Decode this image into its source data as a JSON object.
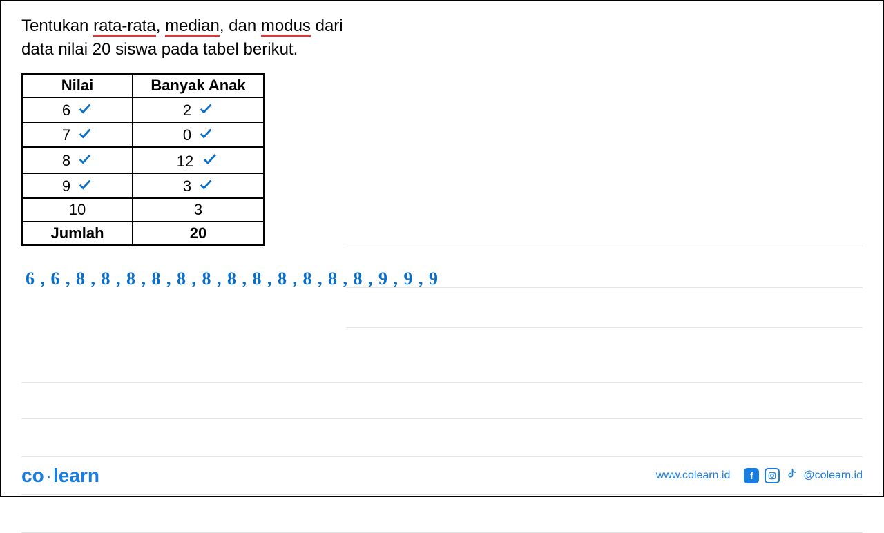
{
  "question": {
    "pre": "Tentukan ",
    "w1": "rata-rata",
    "sep1": ", ",
    "w2": "median",
    "sep2": ", dan ",
    "w3": "modus",
    "post": " dari",
    "line2": "data nilai 20 siswa pada tabel berikut."
  },
  "table": {
    "headers": {
      "col1": "Nilai",
      "col2": "Banyak Anak"
    },
    "rows": [
      {
        "nilai": "6",
        "anak": "2",
        "check_nilai": true,
        "check_anak": true
      },
      {
        "nilai": "7",
        "anak": "0",
        "check_nilai": true,
        "check_anak": true
      },
      {
        "nilai": "8",
        "anak": "12",
        "check_nilai": true,
        "check_anak": true
      },
      {
        "nilai": "9",
        "anak": "3",
        "check_nilai": true,
        "check_anak": true
      },
      {
        "nilai": "10",
        "anak": "3",
        "check_nilai": false,
        "check_anak": false
      }
    ],
    "footer": {
      "label": "Jumlah",
      "value": "20"
    }
  },
  "handwriting": "6 , 6 , 8 , 8 , 8 , 8 , 8 , 8 , 8 , 8 , 8 , 8 , 8 , 8 , 9 , 9 , 9",
  "underline_color": "#d83a3a",
  "annotation_color": "#0a6ec9",
  "footer": {
    "brand_a": "co",
    "brand_b": "learn",
    "url": "www.colearn.id",
    "handle": "@colearn.id"
  },
  "ruled_lines_right": [
    180,
    240,
    298
  ],
  "ruled_lines_full": [
    378,
    430,
    485,
    540,
    595
  ]
}
